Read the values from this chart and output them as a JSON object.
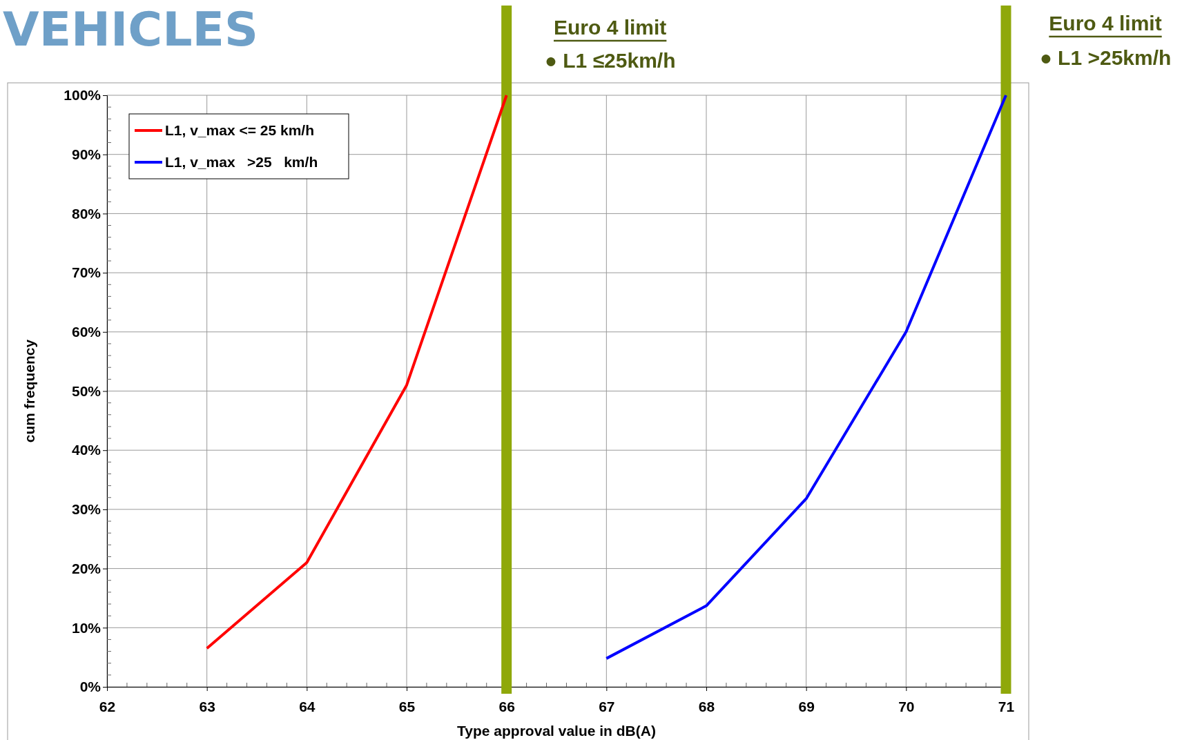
{
  "chart_data": {
    "type": "line",
    "title": "VEHICLES",
    "xlabel": "Type approval  value in dB(A)",
    "ylabel": "cum frequency",
    "xlim": [
      62,
      71
    ],
    "xticks": [
      62,
      63,
      64,
      65,
      66,
      67,
      68,
      69,
      70,
      71
    ],
    "ylim": [
      0,
      1
    ],
    "yticks": [
      {
        "value": 0,
        "label": "0%"
      },
      {
        "value": 0.1,
        "label": "10%"
      },
      {
        "value": 0.2,
        "label": "20%"
      },
      {
        "value": 0.3,
        "label": "30%"
      },
      {
        "value": 0.4,
        "label": "40%"
      },
      {
        "value": 0.5,
        "label": "50%"
      },
      {
        "value": 0.6,
        "label": "60%"
      },
      {
        "value": 0.7,
        "label": "70%"
      },
      {
        "value": 0.8,
        "label": "80%"
      },
      {
        "value": 0.9,
        "label": "90%"
      },
      {
        "value": 1,
        "label": "100%"
      }
    ],
    "grid": true,
    "legend": "top left",
    "line_style": "solid",
    "series": [
      {
        "name": "L1, v_max <= 25 km/h",
        "color": "#ff0000",
        "x": [
          63,
          64,
          65,
          66
        ],
        "values": [
          0.065,
          0.21,
          0.51,
          1.0
        ]
      },
      {
        "name": "L1, v_max   >25   km/h",
        "color": "#0000ff",
        "x": [
          67,
          68,
          69,
          70,
          71
        ],
        "values": [
          0.048,
          0.137,
          0.318,
          0.6,
          1.0
        ]
      }
    ],
    "ref_lines": [
      {
        "axis": "x",
        "value": 66,
        "label": "Euro 4 limit",
        "color": "#8fa80a"
      },
      {
        "axis": "x",
        "value": 71,
        "label": "Euro 4 limit",
        "color": "#8fa80a"
      }
    ],
    "annotations": [
      "● L1 ≤25km/h",
      "● L1 >25km/h"
    ]
  }
}
